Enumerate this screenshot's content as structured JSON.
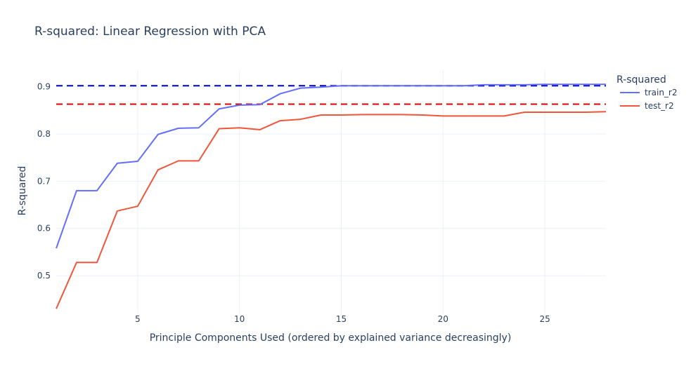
{
  "chart_data": {
    "type": "line",
    "title": "R-squared: Linear Regression with PCA",
    "xlabel": "Principle Components Used (ordered by explained variance decreasingly)",
    "ylabel": "R-squared",
    "xlim": [
      1,
      28
    ],
    "ylim": [
      0.42,
      0.935
    ],
    "x_ticks": [
      5,
      10,
      15,
      20,
      25
    ],
    "y_ticks": [
      0.5,
      0.6,
      0.7,
      0.8,
      0.9
    ],
    "grid": true,
    "legend": {
      "title": "R-squared",
      "placement": "right"
    },
    "x": [
      1,
      2,
      3,
      4,
      5,
      6,
      7,
      8,
      9,
      10,
      11,
      12,
      13,
      14,
      15,
      16,
      17,
      18,
      19,
      20,
      21,
      22,
      23,
      24,
      25,
      26,
      27,
      28
    ],
    "series": [
      {
        "name": "train_r2",
        "color": "#636efa",
        "values": [
          0.558,
          0.68,
          0.68,
          0.738,
          0.742,
          0.799,
          0.812,
          0.813,
          0.853,
          0.861,
          0.862,
          0.885,
          0.897,
          0.899,
          0.902,
          0.902,
          0.902,
          0.902,
          0.902,
          0.902,
          0.902,
          0.904,
          0.904,
          0.904,
          0.905,
          0.905,
          0.905,
          0.905
        ]
      },
      {
        "name": "test_r2",
        "color": "#ef553b",
        "values": [
          0.43,
          0.528,
          0.528,
          0.637,
          0.647,
          0.724,
          0.743,
          0.743,
          0.811,
          0.813,
          0.809,
          0.828,
          0.831,
          0.84,
          0.84,
          0.841,
          0.841,
          0.841,
          0.84,
          0.838,
          0.838,
          0.838,
          0.838,
          0.846,
          0.846,
          0.846,
          0.846,
          0.847
        ]
      }
    ],
    "reference_lines": [
      {
        "value": 0.902,
        "color": "#0000cc",
        "style": "dash"
      },
      {
        "value": 0.863,
        "color": "#dd0000",
        "style": "dash"
      }
    ]
  }
}
